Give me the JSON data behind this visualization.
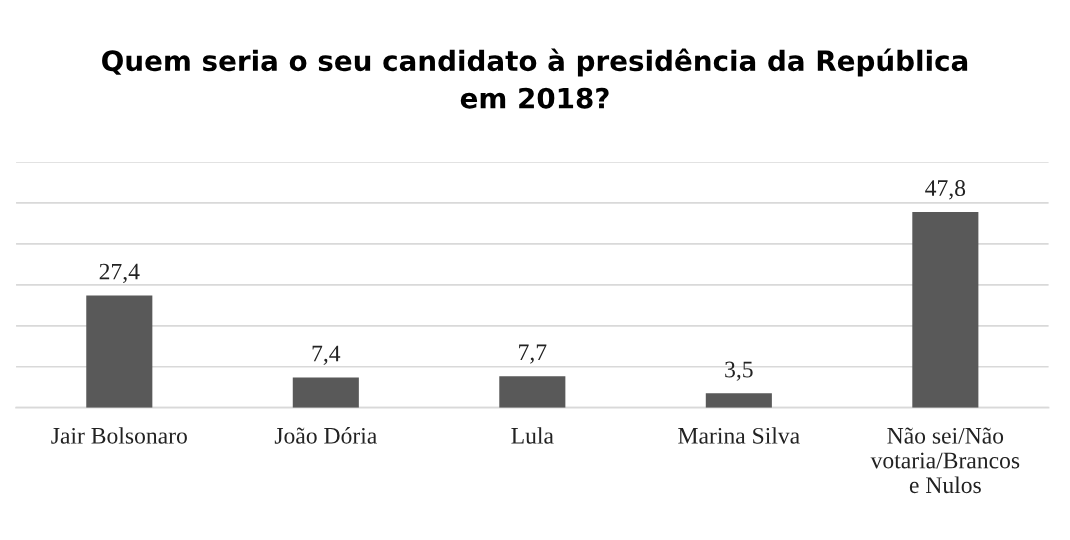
{
  "chart_data": {
    "type": "bar",
    "title": "Quem seria o seu candidato à presidência da República\nem 2018?",
    "categories": [
      "Jair Bolsonaro",
      "João Dória",
      "Lula",
      "Marina Silva",
      "Não sei/Não\nvotaria/Brancos\ne Nulos"
    ],
    "values": [
      27.4,
      7.4,
      7.7,
      3.5,
      47.8
    ],
    "value_labels": [
      "27,4",
      "7,4",
      "7,7",
      "3,5",
      "47,8"
    ],
    "color": "#595959",
    "ylim": [
      0,
      60
    ],
    "yticks": [
      {
        "value": 0,
        "label": null
      },
      {
        "value": 10,
        "label": null
      },
      {
        "value": 20,
        "label": null
      },
      {
        "value": 30,
        "label": null
      },
      {
        "value": 40,
        "label": null
      },
      {
        "value": 50,
        "label": null
      },
      {
        "value": 60,
        "label": null
      }
    ],
    "tick_labels": "x",
    "grid": "y",
    "legend": false
  }
}
